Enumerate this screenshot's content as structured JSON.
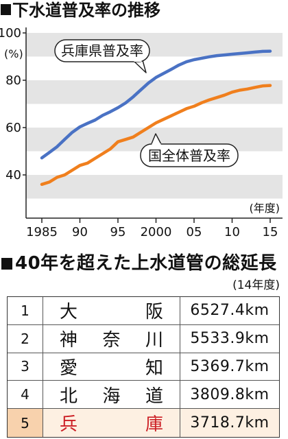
{
  "chart_data": {
    "type": "line",
    "title": "下水道普及率の推移",
    "ylabel": "(%)",
    "xlabel": "(年度)",
    "xlim": [
      1985,
      2015
    ],
    "ylim": [
      30,
      100
    ],
    "grid": true,
    "x": [
      1985,
      1986,
      1987,
      1988,
      1989,
      1990,
      1991,
      1992,
      1993,
      1994,
      1995,
      1996,
      1997,
      1998,
      1999,
      2000,
      2001,
      2002,
      2003,
      2004,
      2005,
      2006,
      2007,
      2008,
      2009,
      2010,
      2011,
      2012,
      2013,
      2014,
      2015
    ],
    "xticks": [
      1985,
      1990,
      1995,
      2000,
      2005,
      2010,
      2015
    ],
    "xtick_labels": [
      "1985",
      "90",
      "95",
      "2000",
      "05",
      "10",
      "15"
    ],
    "yticks": [
      40,
      60,
      80,
      100
    ],
    "ytick_labels": [
      "40",
      "60",
      "80",
      "100"
    ],
    "series": [
      {
        "name": "兵庫県普及率",
        "color": "#4a72c4",
        "values": [
          47.2,
          49.5,
          51.9,
          55,
          58,
          60.3,
          61.8,
          63.2,
          65.2,
          66.7,
          68.4,
          70.4,
          73,
          75.9,
          78.8,
          81.2,
          82.9,
          84.6,
          86.4,
          87.8,
          88.7,
          89.3,
          89.9,
          90.4,
          90.7,
          91,
          91.3,
          91.6,
          91.9,
          92.2,
          92.3
        ]
      },
      {
        "name": "国全体普及率",
        "color": "#f07f1d",
        "values": [
          36,
          37,
          39,
          40,
          42,
          44,
          45,
          47,
          49,
          51,
          54,
          55,
          56,
          58,
          60,
          62,
          63.5,
          65,
          66.5,
          68,
          69,
          70.5,
          71.7,
          72.7,
          73.7,
          75,
          75.8,
          76.3,
          77,
          77.6,
          77.8
        ]
      }
    ],
    "band_color": "#e4e4e4"
  },
  "table": {
    "title": "40年を超えた上水道管の総延長",
    "note": "(14年度)",
    "highlight_row_bg": "#fdf0e2",
    "highlight_rank_bg": "#f8d2ad",
    "highlight_text_color": "#cc1f25",
    "rows": [
      {
        "rank": "1",
        "name": "大阪",
        "length": "6527.4km"
      },
      {
        "rank": "2",
        "name": "神奈川",
        "length": "5533.9km"
      },
      {
        "rank": "3",
        "name": "愛知",
        "length": "5369.7km"
      },
      {
        "rank": "4",
        "name": "北海道",
        "length": "3809.8km"
      },
      {
        "rank": "5",
        "name": "兵庫",
        "length": "3718.7km"
      }
    ]
  }
}
